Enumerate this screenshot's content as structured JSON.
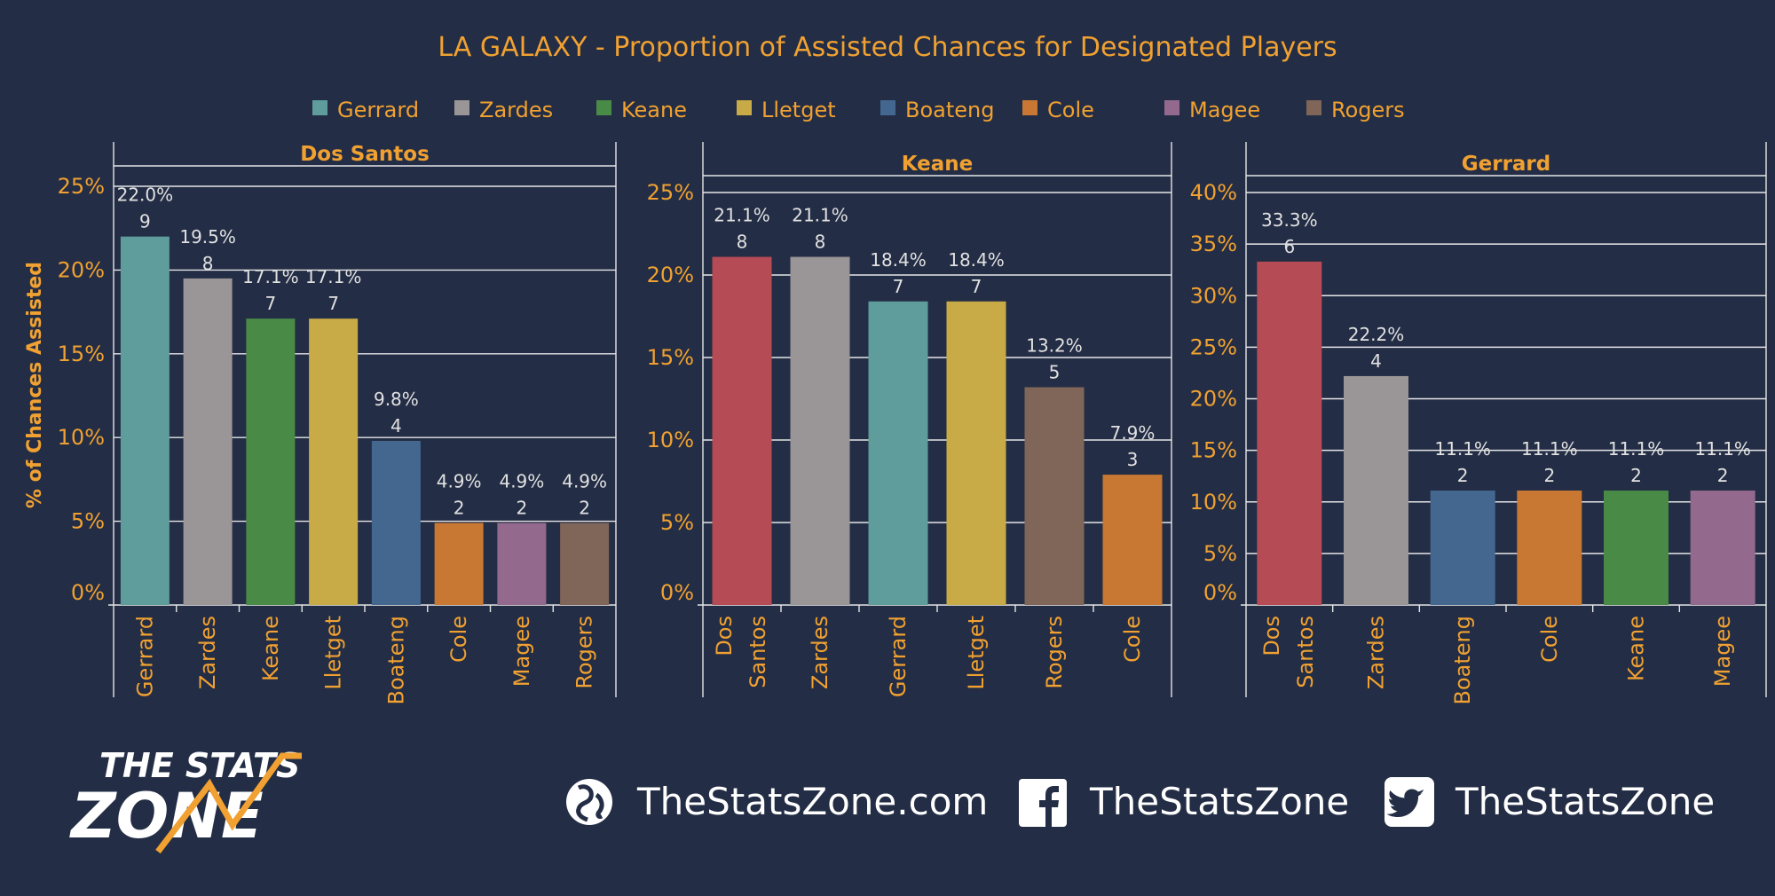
{
  "chart_data": {
    "type": "bar",
    "title": "LA GALAXY - Proportion of Assisted Chances for Designated Players",
    "ylabel": "% of Chances Assisted",
    "legend": {
      "placement": "top",
      "entries": [
        {
          "name": "Gerrard",
          "color": "#5f9c9c"
        },
        {
          "name": "Zardes",
          "color": "#9a9596"
        },
        {
          "name": "Keane",
          "color": "#4a8a47"
        },
        {
          "name": "Lletget",
          "color": "#c8aa46"
        },
        {
          "name": "Boateng",
          "color": "#44678f"
        },
        {
          "name": "Cole",
          "color": "#c87833"
        },
        {
          "name": "Magee",
          "color": "#936a8d"
        },
        {
          "name": "Rogers",
          "color": "#806559"
        }
      ]
    },
    "panels": [
      {
        "title": "Dos Santos",
        "ylim": [
          0,
          25
        ],
        "yticks": [
          "0%",
          "5%",
          "10%",
          "15%",
          "20%",
          "25%"
        ],
        "bars": [
          {
            "category": [
              "Gerrard"
            ],
            "player": "Gerrard",
            "value": 22.0,
            "pct_label": "22.0%",
            "count": "9"
          },
          {
            "category": [
              "Zardes"
            ],
            "player": "Zardes",
            "value": 19.5,
            "pct_label": "19.5%",
            "count": "8"
          },
          {
            "category": [
              "Keane"
            ],
            "player": "Keane",
            "value": 17.1,
            "pct_label": "17.1%",
            "count": "7"
          },
          {
            "category": [
              "Lletget"
            ],
            "player": "Lletget",
            "value": 17.1,
            "pct_label": "17.1%",
            "count": "7"
          },
          {
            "category": [
              "Boateng"
            ],
            "player": "Boateng",
            "value": 9.8,
            "pct_label": "9.8%",
            "count": "4"
          },
          {
            "category": [
              "Cole"
            ],
            "player": "Cole",
            "value": 4.9,
            "pct_label": "4.9%",
            "count": "2"
          },
          {
            "category": [
              "Magee"
            ],
            "player": "Magee",
            "value": 4.9,
            "pct_label": "4.9%",
            "count": "2"
          },
          {
            "category": [
              "Rogers"
            ],
            "player": "Rogers",
            "value": 4.9,
            "pct_label": "4.9%",
            "count": "2"
          }
        ]
      },
      {
        "title": "Keane",
        "ylim": [
          0,
          25
        ],
        "yticks": [
          "0%",
          "5%",
          "10%",
          "15%",
          "20%",
          "25%"
        ],
        "bars": [
          {
            "category": [
              "Dos",
              "Santos"
            ],
            "player": "Dos Santos",
            "value": 21.1,
            "pct_label": "21.1%",
            "count": "8"
          },
          {
            "category": [
              "Zardes"
            ],
            "player": "Zardes",
            "value": 21.1,
            "pct_label": "21.1%",
            "count": "8"
          },
          {
            "category": [
              "Gerrard"
            ],
            "player": "Gerrard",
            "value": 18.4,
            "pct_label": "18.4%",
            "count": "7"
          },
          {
            "category": [
              "Lletget"
            ],
            "player": "Lletget",
            "value": 18.4,
            "pct_label": "18.4%",
            "count": "7"
          },
          {
            "category": [
              "Rogers"
            ],
            "player": "Rogers",
            "value": 13.2,
            "pct_label": "13.2%",
            "count": "5"
          },
          {
            "category": [
              "Cole"
            ],
            "player": "Cole",
            "value": 7.9,
            "pct_label": "7.9%",
            "count": "3"
          }
        ]
      },
      {
        "title": "Gerrard",
        "ylim": [
          0,
          40
        ],
        "yticks": [
          "0%",
          "5%",
          "10%",
          "15%",
          "20%",
          "25%",
          "30%",
          "35%",
          "40%"
        ],
        "bars": [
          {
            "category": [
              "Dos",
              "Santos"
            ],
            "player": "Dos Santos",
            "value": 33.3,
            "pct_label": "33.3%",
            "count": "6"
          },
          {
            "category": [
              "Zardes"
            ],
            "player": "Zardes",
            "value": 22.2,
            "pct_label": "22.2%",
            "count": "4"
          },
          {
            "category": [
              "Boateng"
            ],
            "player": "Boateng",
            "value": 11.1,
            "pct_label": "11.1%",
            "count": "2"
          },
          {
            "category": [
              "Cole"
            ],
            "player": "Cole",
            "value": 11.1,
            "pct_label": "11.1%",
            "count": "2"
          },
          {
            "category": [
              "Keane"
            ],
            "player": "Keane",
            "value": 11.1,
            "pct_label": "11.1%",
            "count": "2"
          },
          {
            "category": [
              "Magee"
            ],
            "player": "Magee",
            "value": 11.1,
            "pct_label": "11.1%",
            "count": "2"
          }
        ]
      }
    ],
    "bar_colors": {
      "Gerrard": "#5f9c9c",
      "Zardes": "#9a9596",
      "Keane": "#4a8a47",
      "Lletget": "#c8aa46",
      "Boateng": "#44678f",
      "Cole": "#c87833",
      "Magee": "#936a8d",
      "Rogers": "#806559",
      "Dos Santos": "#b54b55"
    }
  },
  "footer": {
    "logo_line1": "THE STATS",
    "logo_line2": "ZONE",
    "website": "TheStatsZone.com",
    "facebook": "TheStatsZone",
    "twitter": "TheStatsZone",
    "icons": [
      "globe-icon",
      "facebook-icon",
      "twitter-icon"
    ]
  }
}
